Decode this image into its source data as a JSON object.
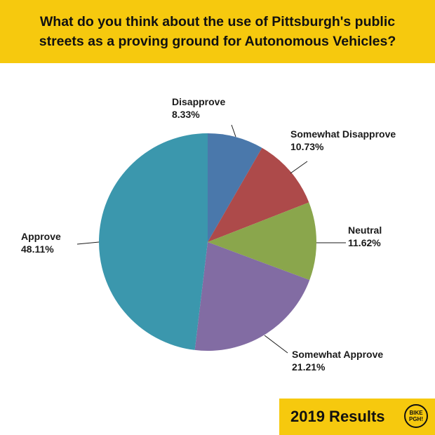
{
  "header": {
    "line1": "What do you think about the use of Pittsburgh's public",
    "line2": "streets as a proving ground for Autonomous Vehicles?"
  },
  "footer": {
    "label": "2019 Results",
    "logo_line1": "BIKE",
    "logo_line2": "PGH!"
  },
  "chart_data": {
    "type": "pie",
    "title": "What do you think about the use of Pittsburgh's public streets as a proving ground for Autonomous Vehicles?",
    "start": "12 o'clock",
    "direction": "clockwise",
    "slices": [
      {
        "name": "Disapprove",
        "value": 8.33,
        "label": "8.33%",
        "color": "#4a78ab"
      },
      {
        "name": "Somewhat Disapprove",
        "value": 10.73,
        "label": "10.73%",
        "color": "#ad4a4a"
      },
      {
        "name": "Neutral",
        "value": 11.62,
        "label": "11.62%",
        "color": "#8aa64c"
      },
      {
        "name": "Somewhat Approve",
        "value": 21.21,
        "label": "21.21%",
        "color": "#826ca3"
      },
      {
        "name": "Approve",
        "value": 48.11,
        "label": "48.11%",
        "color": "#3b97ad"
      }
    ]
  }
}
